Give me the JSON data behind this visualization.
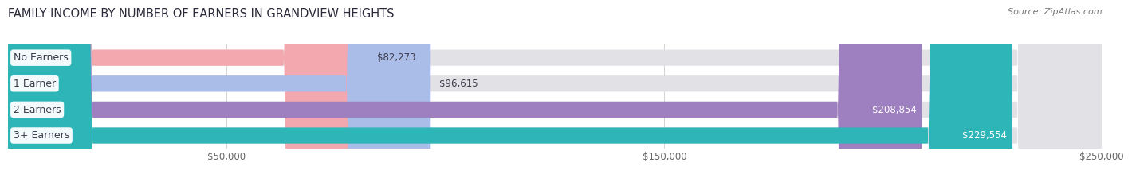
{
  "title": "FAMILY INCOME BY NUMBER OF EARNERS IN GRANDVIEW HEIGHTS",
  "source": "Source: ZipAtlas.com",
  "categories": [
    "No Earners",
    "1 Earner",
    "2 Earners",
    "3+ Earners"
  ],
  "values": [
    82273,
    96615,
    208854,
    229554
  ],
  "value_labels": [
    "$82,273",
    "$96,615",
    "$208,854",
    "$229,554"
  ],
  "bar_colors": [
    "#f2a8ae",
    "#aabde8",
    "#9e7fc0",
    "#2db5b8"
  ],
  "track_color": "#e2e2e6",
  "xmin": 0,
  "xmax": 250000,
  "xticks": [
    50000,
    150000,
    250000
  ],
  "xtick_labels": [
    "$50,000",
    "$150,000",
    "$250,000"
  ],
  "title_fontsize": 10.5,
  "source_fontsize": 8,
  "label_fontsize": 9,
  "value_fontsize": 8.5,
  "background_color": "#ffffff",
  "bar_background": "#f0f0f4",
  "bar_height": 0.62,
  "gap_color": "#ffffff"
}
